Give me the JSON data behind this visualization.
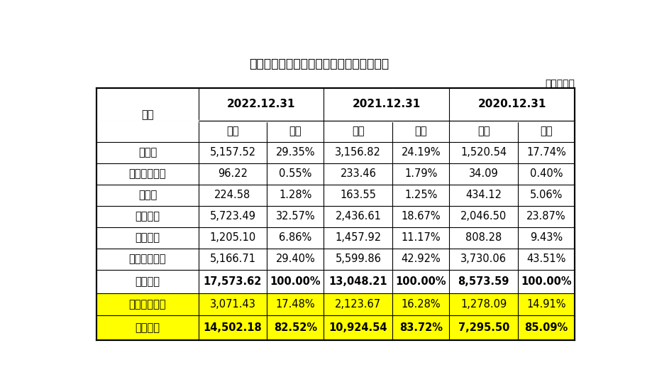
{
  "title": "报告期各期末，公司存货的构成情况如下：",
  "unit_label": "单位：万元",
  "col_headers_row1": [
    "项目",
    "2022.12.31",
    "",
    "2021.12.31",
    "",
    "2020.12.31",
    ""
  ],
  "col_headers_row2": [
    "",
    "金额",
    "占比",
    "金额",
    "占比",
    "金额",
    "占比"
  ],
  "rows": [
    [
      "原材料",
      "5,157.52",
      "29.35%",
      "3,156.82",
      "24.19%",
      "1,520.54",
      "17.74%"
    ],
    [
      "委托加工物资",
      "96.22",
      "0.55%",
      "233.46",
      "1.79%",
      "34.09",
      "0.40%"
    ],
    [
      "在产品",
      "224.58",
      "1.28%",
      "163.55",
      "1.25%",
      "434.12",
      "5.06%"
    ],
    [
      "库存商品",
      "5,723.49",
      "32.57%",
      "2,436.61",
      "18.67%",
      "2,046.50",
      "23.87%"
    ],
    [
      "发出商品",
      "1,205.10",
      "6.86%",
      "1,457.92",
      "11.17%",
      "808.28",
      "9.43%"
    ],
    [
      "合同履约成本",
      "5,166.71",
      "29.40%",
      "5,599.86",
      "42.92%",
      "3,730.06",
      "43.51%"
    ]
  ],
  "bold_row": [
    "账面余额",
    "17,573.62",
    "100.00%",
    "13,048.21",
    "100.00%",
    "8,573.59",
    "100.00%"
  ],
  "yellow_row1": [
    "存货跌价准备",
    "3,071.43",
    "17.48%",
    "2,123.67",
    "16.28%",
    "1,278.09",
    "14.91%"
  ],
  "yellow_row2": [
    "账面价值",
    "14,502.18",
    "82.52%",
    "10,924.54",
    "83.72%",
    "7,295.50",
    "85.09%"
  ],
  "bg_color": "#ffffff",
  "border_color": "#000000",
  "yellow_color": "#ffff00",
  "text_color": "#000000",
  "col_widths_rel": [
    1.7,
    1.15,
    0.95,
    1.15,
    0.95,
    1.15,
    0.95
  ],
  "row_heights_rel": [
    1.55,
    1.0,
    1.0,
    1.0,
    1.0,
    1.0,
    1.0,
    1.0,
    1.1,
    1.05,
    1.15
  ],
  "figsize": [
    9.2,
    5.52
  ],
  "dpi": 100
}
